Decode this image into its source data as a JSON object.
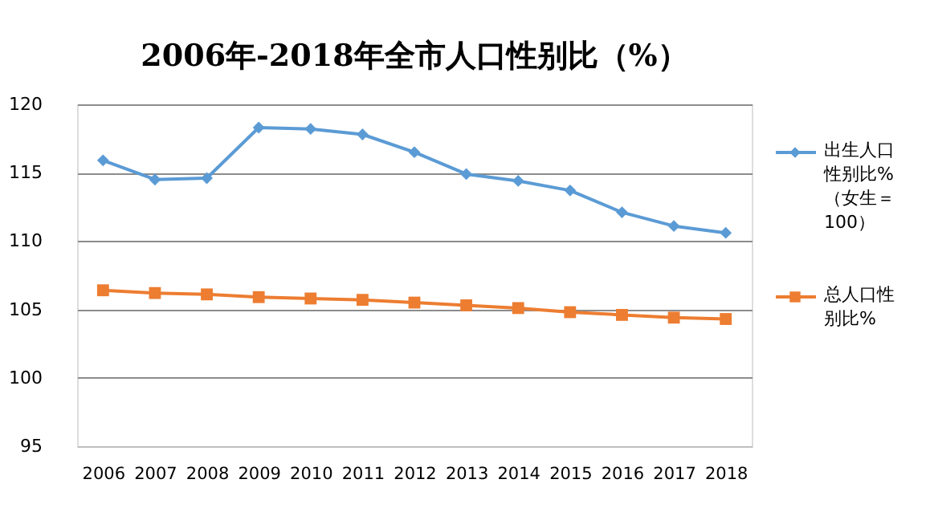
{
  "chart_data": {
    "type": "line",
    "title": "2006年-2018年全市人口性别比（%）",
    "categories": [
      "2006",
      "2007",
      "2008",
      "2009",
      "2010",
      "2011",
      "2012",
      "2013",
      "2014",
      "2015",
      "2016",
      "2017",
      "2018"
    ],
    "series": [
      {
        "name": "出生人口性别比%（女生＝100）",
        "color": "#5b9bd5",
        "marker": "diamond",
        "values": [
          115.9,
          114.5,
          114.6,
          118.3,
          118.2,
          117.8,
          116.5,
          114.9,
          114.4,
          113.7,
          112.1,
          111.1,
          110.6
        ]
      },
      {
        "name": "总人口性别比%",
        "color": "#ed7d31",
        "marker": "square",
        "values": [
          106.4,
          106.2,
          106.1,
          105.9,
          105.8,
          105.7,
          105.5,
          105.3,
          105.1,
          104.8,
          104.6,
          104.4,
          104.3
        ]
      }
    ],
    "ylim": [
      95,
      120
    ],
    "yticks": [
      95,
      100,
      105,
      110,
      115,
      120
    ],
    "grid": "y",
    "legend": "right"
  }
}
